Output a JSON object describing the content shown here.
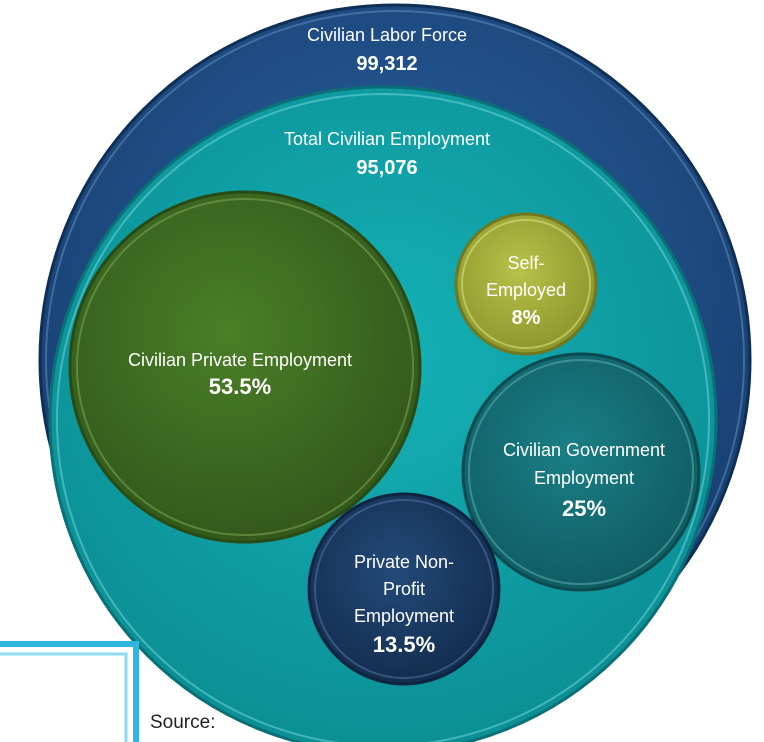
{
  "colors": {
    "labor_force": "#1f4f86",
    "total_employment": "#0fa3a9",
    "private_employment": "#3f6d22",
    "self_employed": "#a9b33a",
    "government": "#136f75",
    "non_profit": "#1b3a63",
    "accent_bracket": "#2fb7e0"
  },
  "diagram": {
    "labor_force": {
      "label": "Civilian Labor Force",
      "value": "99,312"
    },
    "total_employment": {
      "label": "Total Civilian Employment",
      "value": "95,076"
    },
    "private_employment": {
      "label": "Civilian Private Employment",
      "value": "53.5%"
    },
    "self_employed": {
      "label_line1": "Self-",
      "label_line2": "Employed",
      "value": "8%"
    },
    "government": {
      "label_line1": "Civilian Government",
      "label_line2": "Employment",
      "value": "25%"
    },
    "non_profit": {
      "label_line1": "Private Non-",
      "label_line2": "Profit",
      "label_line3": "Employment",
      "value": "13.5%"
    }
  },
  "footer": {
    "source_label": "Source:"
  }
}
